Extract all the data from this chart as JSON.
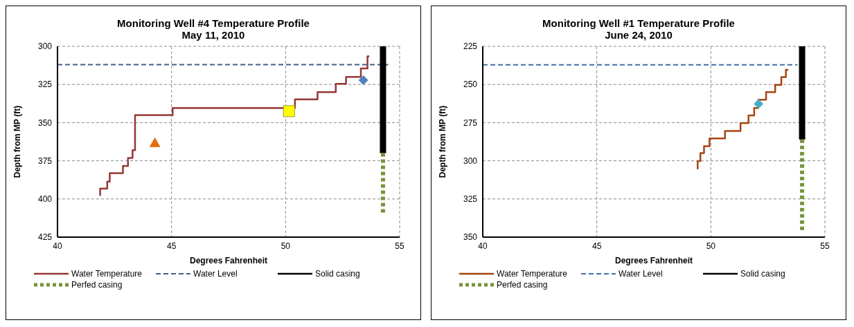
{
  "chart_data": [
    {
      "type": "line",
      "title": "Monitoring Well #4 Temperature Profile",
      "subtitle": "May 11, 2010",
      "xlabel": "Degrees Fahrenheit",
      "ylabel": "Depth from MP (ft)",
      "xlim": [
        40,
        55
      ],
      "xticks": [
        40,
        45,
        50,
        55
      ],
      "ylim": [
        425,
        300
      ],
      "yticks": [
        300,
        325,
        350,
        375,
        400,
        425
      ],
      "grid": true,
      "legend": "bottom",
      "series": [
        {
          "name": "Water Temperature",
          "color": "#953735",
          "line_style": "solid",
          "marker": "none",
          "x": [
            41.87,
            41.87,
            42.18,
            42.18,
            42.29,
            42.29,
            42.87,
            42.87,
            43.09,
            43.09,
            43.29,
            43.29,
            43.4,
            43.4,
            45.05,
            45.05,
            50.41,
            50.41,
            51.4,
            51.4,
            52.2,
            52.2,
            52.65,
            52.65,
            53.3,
            53.3,
            53.59,
            53.59,
            53.67
          ],
          "values": [
            397.9,
            393.2,
            393.2,
            388.6,
            388.6,
            383.1,
            383.1,
            378.3,
            378.3,
            373.1,
            373.1,
            368.1,
            368.1,
            345.1,
            345.1,
            340.4,
            340.4,
            334.8,
            334.8,
            330,
            330,
            324.6,
            324.6,
            320,
            320,
            314.5,
            314.5,
            306.6,
            306.6
          ]
        },
        {
          "name": "Water Level",
          "color": "#3f5f8a",
          "line_style": "dashed",
          "marker": "none",
          "x": [
            40,
            54.5
          ],
          "values": [
            312,
            312
          ]
        },
        {
          "name": "Solid casing",
          "color": "#000000",
          "line_style": "solid",
          "marker": "none",
          "x": [
            54.27,
            54.27
          ],
          "values": [
            300,
            370
          ]
        },
        {
          "name": "Perfed casing",
          "color": "#77933c",
          "line_style": "dotted",
          "marker": "none",
          "x": [
            54.27,
            54.27
          ],
          "values": [
            370,
            410.5
          ]
        },
        {
          "type": "scatter",
          "color": "#4f81bd",
          "marker": "diamond",
          "x": [
            53.41
          ],
          "values": [
            322.2
          ]
        },
        {
          "type": "scatter",
          "color": "#ffff00",
          "marker": "square",
          "x": [
            50.15
          ],
          "values": [
            342.5
          ]
        },
        {
          "type": "scatter",
          "color": "#e46c0a",
          "marker": "triangle",
          "x": [
            44.27
          ],
          "values": [
            363.3
          ]
        }
      ]
    },
    {
      "type": "line",
      "title": "Monitoring Well #1 Temperature Profile",
      "subtitle": "June 24, 2010",
      "xlabel": "Degrees Fahrenheit",
      "ylabel": "Depth from MP (ft)",
      "xlim": [
        40,
        55
      ],
      "xticks": [
        40,
        45,
        50,
        55
      ],
      "ylim": [
        350,
        225
      ],
      "yticks": [
        225,
        250,
        275,
        300,
        325,
        350
      ],
      "grid": true,
      "legend": "bottom",
      "series": [
        {
          "name": "Water Temperature",
          "color": "#a8440f",
          "line_style": "solid",
          "marker": "none",
          "x": [
            49.42,
            49.42,
            49.54,
            49.54,
            49.7,
            49.7,
            49.94,
            49.94,
            50.62,
            50.62,
            51.3,
            51.3,
            51.65,
            51.65,
            51.9,
            51.9,
            52.08,
            52.08,
            52.42,
            52.42,
            52.82,
            52.82,
            53.09,
            53.09,
            53.29,
            53.29,
            53.39
          ],
          "values": [
            305.5,
            300.2,
            300.2,
            295,
            295,
            290.5,
            290.5,
            285.3,
            285.3,
            280.5,
            280.5,
            275.3,
            275.3,
            270.3,
            270.3,
            265.4,
            265.4,
            260,
            260,
            255,
            255,
            250.2,
            250.2,
            245.2,
            245.2,
            240.4,
            240.4
          ]
        },
        {
          "name": "Water Level",
          "color": "#3f6fa8",
          "line_style": "dashed",
          "marker": "none",
          "x": [
            40,
            53.8
          ],
          "values": [
            237.1,
            237.1
          ]
        },
        {
          "name": "Solid casing",
          "color": "#000000",
          "line_style": "solid",
          "marker": "none",
          "x": [
            54,
            54
          ],
          "values": [
            225,
            286
          ]
        },
        {
          "name": "Perfed casing",
          "color": "#77933c",
          "line_style": "dotted",
          "marker": "none",
          "x": [
            54,
            54
          ],
          "values": [
            286,
            346
          ]
        },
        {
          "type": "scatter",
          "color": "#4bacc6",
          "marker": "diamond",
          "x": [
            52.09
          ],
          "values": [
            262.7
          ]
        }
      ]
    }
  ]
}
